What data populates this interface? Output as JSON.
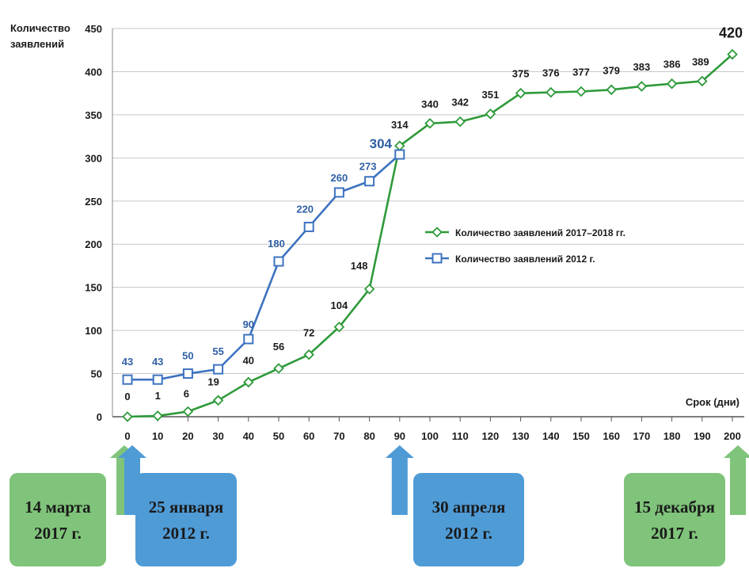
{
  "chart_data": {
    "type": "line",
    "ylabel": [
      "Количество",
      "заявлений"
    ],
    "xlabel": "Срок (дни)",
    "ylim": [
      0,
      450
    ],
    "yticks": [
      0,
      50,
      100,
      150,
      200,
      250,
      300,
      350,
      400,
      450
    ],
    "xticks": [
      0,
      10,
      20,
      30,
      40,
      50,
      60,
      70,
      80,
      90,
      100,
      110,
      120,
      130,
      140,
      150,
      160,
      170,
      180,
      190,
      200
    ],
    "grid": "horizontal",
    "legend_position": "center-right",
    "series": [
      {
        "name": "Количество заявлений 2017–2018 гг.",
        "color": "#2e9a3a",
        "marker": "diamond",
        "x": [
          0,
          10,
          20,
          30,
          40,
          50,
          60,
          70,
          80,
          90,
          100,
          110,
          120,
          130,
          140,
          150,
          160,
          170,
          180,
          190,
          200
        ],
        "values": [
          0,
          1,
          6,
          19,
          40,
          56,
          72,
          104,
          148,
          314,
          340,
          342,
          351,
          375,
          376,
          377,
          379,
          383,
          386,
          389,
          420
        ]
      },
      {
        "name": "Количество заявлений 2012 г.",
        "color": "#3d73c0",
        "marker": "square",
        "x": [
          0,
          10,
          20,
          30,
          40,
          50,
          60,
          70,
          80,
          90
        ],
        "values": [
          43,
          43,
          50,
          55,
          90,
          180,
          220,
          260,
          273,
          304
        ]
      }
    ],
    "annotations": [
      {
        "text": [
          "14 марта",
          "2017 г."
        ],
        "x": 0,
        "color": "#7fc47a"
      },
      {
        "text": [
          "25 января",
          "2012 г."
        ],
        "x": 0,
        "color": "#4f9bd6"
      },
      {
        "text": [
          "30 апреля",
          "2012 г."
        ],
        "x": 90,
        "color": "#4f9bd6"
      },
      {
        "text": [
          "15 декабря",
          "2017 г."
        ],
        "x": 200,
        "color": "#7fc47a"
      }
    ]
  }
}
